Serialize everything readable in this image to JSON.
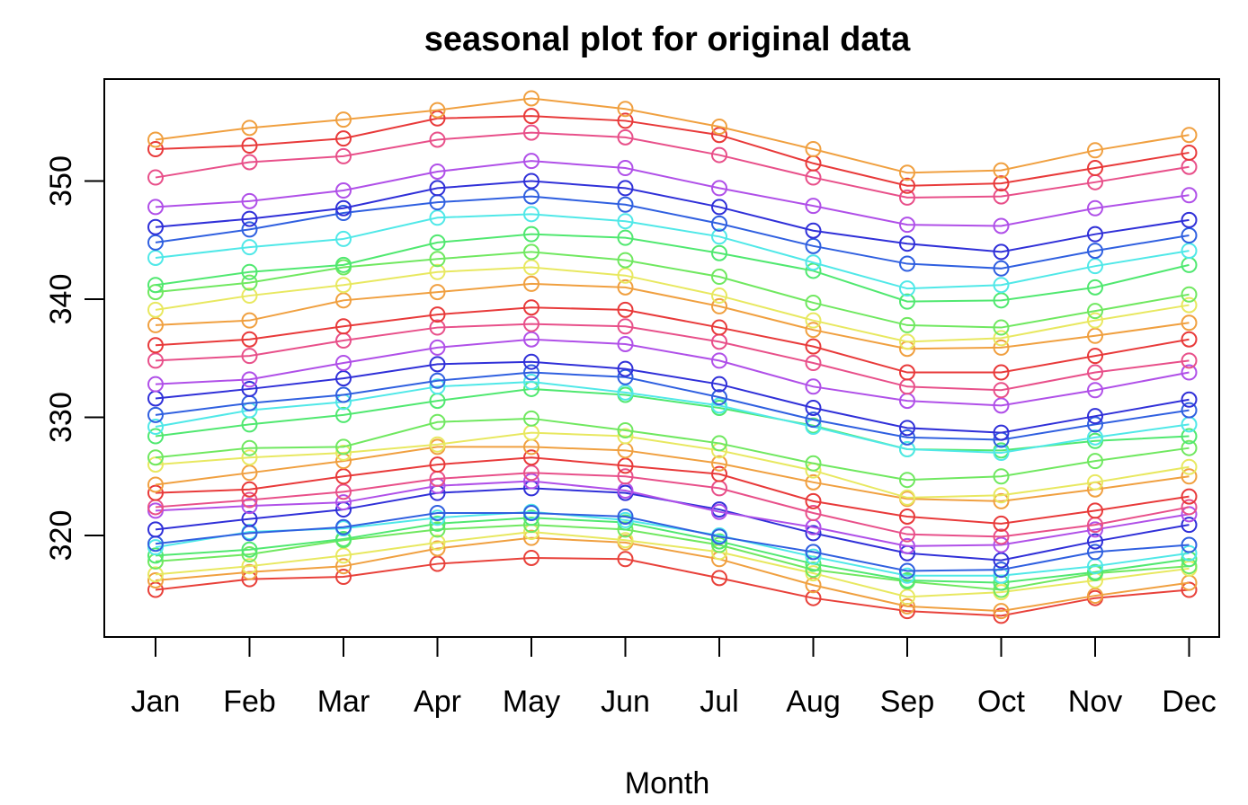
{
  "chart_data": {
    "type": "line",
    "title": "seasonal plot for original data",
    "xlabel": "Month",
    "ylabel": "",
    "categories": [
      "Jan",
      "Feb",
      "Mar",
      "Apr",
      "May",
      "Jun",
      "Jul",
      "Aug",
      "Sep",
      "Oct",
      "Nov",
      "Dec"
    ],
    "yticks": [
      320,
      330,
      340,
      350
    ],
    "ylim": [
      312,
      358
    ],
    "grid": false,
    "legend": "none",
    "marker": "open-circle",
    "series": [
      {
        "color": "#e8413a",
        "values": [
          315.4,
          316.3,
          316.5,
          317.6,
          318.1,
          318.0,
          316.4,
          314.7,
          313.6,
          313.2,
          314.7,
          315.4
        ]
      },
      {
        "color": "#f0a040",
        "values": [
          316.2,
          316.9,
          317.4,
          318.9,
          319.8,
          319.4,
          318.0,
          315.8,
          314.0,
          313.6,
          314.9,
          316.0
        ]
      },
      {
        "color": "#e8e860",
        "values": [
          316.7,
          317.4,
          318.3,
          319.4,
          320.3,
          319.6,
          318.6,
          316.8,
          314.8,
          315.2,
          316.2,
          317.2
        ]
      },
      {
        "color": "#70e860",
        "values": [
          317.8,
          318.4,
          319.6,
          320.5,
          320.9,
          320.5,
          319.2,
          317.1,
          316.1,
          315.4,
          316.8,
          317.4
        ]
      },
      {
        "color": "#50e870",
        "values": [
          318.3,
          318.8,
          319.7,
          321.0,
          321.5,
          321.1,
          319.5,
          317.6,
          316.2,
          316.0,
          316.9,
          318.0
        ]
      },
      {
        "color": "#50e8e8",
        "values": [
          319.0,
          320.3,
          320.6,
          321.5,
          322.0,
          321.3,
          320.0,
          318.2,
          316.6,
          316.6,
          317.4,
          318.5
        ]
      },
      {
        "color": "#3060e0",
        "values": [
          319.3,
          320.2,
          320.7,
          321.9,
          321.9,
          321.6,
          319.9,
          318.6,
          317.0,
          317.1,
          318.6,
          319.2
        ]
      },
      {
        "color": "#3030d8",
        "values": [
          320.5,
          321.4,
          322.2,
          323.6,
          324.0,
          323.6,
          322.2,
          320.2,
          318.5,
          317.9,
          319.5,
          320.9
        ]
      },
      {
        "color": "#b050e8",
        "values": [
          322.1,
          322.5,
          322.8,
          324.2,
          324.6,
          323.8,
          322.0,
          320.7,
          319.1,
          319.2,
          320.5,
          321.8
        ]
      },
      {
        "color": "#e8508a",
        "values": [
          322.4,
          323.0,
          323.7,
          324.8,
          325.3,
          325.0,
          324.0,
          321.9,
          320.1,
          319.9,
          320.9,
          322.4
        ]
      },
      {
        "color": "#e83a3a",
        "values": [
          323.6,
          323.9,
          325.0,
          326.0,
          326.6,
          325.9,
          325.2,
          322.9,
          321.6,
          321.0,
          322.1,
          323.3
        ]
      },
      {
        "color": "#f0a040",
        "values": [
          324.3,
          325.3,
          326.3,
          327.5,
          327.5,
          327.2,
          326.1,
          324.5,
          323.1,
          322.9,
          323.9,
          325.0
        ]
      },
      {
        "color": "#e8e860",
        "values": [
          326.0,
          326.6,
          327.0,
          327.7,
          328.7,
          328.4,
          327.2,
          325.5,
          323.2,
          323.4,
          324.5,
          325.8
        ]
      },
      {
        "color": "#70e860",
        "values": [
          326.6,
          327.4,
          327.5,
          329.6,
          329.9,
          328.9,
          327.8,
          326.1,
          324.7,
          325.0,
          326.3,
          327.4
        ]
      },
      {
        "color": "#50e870",
        "values": [
          328.4,
          329.4,
          330.2,
          331.4,
          332.4,
          331.9,
          330.8,
          329.3,
          327.3,
          327.2,
          328.0,
          328.4
        ]
      },
      {
        "color": "#50e8e8",
        "values": [
          329.2,
          330.6,
          331.3,
          332.6,
          333.0,
          332.1,
          331.0,
          329.2,
          327.3,
          327.0,
          328.3,
          329.4
        ]
      },
      {
        "color": "#3060e0",
        "values": [
          330.2,
          331.2,
          331.9,
          333.1,
          333.8,
          333.4,
          331.7,
          329.8,
          328.3,
          328.1,
          329.4,
          330.6
        ]
      },
      {
        "color": "#3030d8",
        "values": [
          331.6,
          332.4,
          333.3,
          334.5,
          334.7,
          334.1,
          332.8,
          330.8,
          329.1,
          328.7,
          330.1,
          331.5
        ]
      },
      {
        "color": "#b050e8",
        "values": [
          332.8,
          333.2,
          334.6,
          335.9,
          336.6,
          336.2,
          334.8,
          332.6,
          331.4,
          331.0,
          332.3,
          333.8
        ]
      },
      {
        "color": "#e8508a",
        "values": [
          334.8,
          335.2,
          336.5,
          337.6,
          337.9,
          337.7,
          336.4,
          334.6,
          332.6,
          332.3,
          333.8,
          334.8
        ]
      },
      {
        "color": "#e83a3a",
        "values": [
          336.1,
          336.6,
          337.7,
          338.7,
          339.3,
          339.1,
          337.6,
          336.0,
          333.8,
          333.8,
          335.2,
          336.6
        ]
      },
      {
        "color": "#f0a040",
        "values": [
          337.8,
          338.2,
          339.9,
          340.6,
          341.3,
          341.0,
          339.4,
          337.4,
          335.8,
          335.9,
          336.9,
          338.0
        ]
      },
      {
        "color": "#e8e860",
        "values": [
          339.1,
          340.3,
          341.2,
          342.3,
          342.7,
          342.0,
          340.3,
          338.2,
          336.4,
          336.7,
          338.2,
          339.5
        ]
      },
      {
        "color": "#70e860",
        "values": [
          340.6,
          341.4,
          342.7,
          343.4,
          344.0,
          343.3,
          341.9,
          339.7,
          337.8,
          337.6,
          339.0,
          340.4
        ]
      },
      {
        "color": "#50e870",
        "values": [
          341.2,
          342.3,
          342.9,
          344.8,
          345.5,
          345.2,
          343.9,
          342.4,
          339.8,
          339.9,
          341.0,
          342.9
        ]
      },
      {
        "color": "#50e8e8",
        "values": [
          343.5,
          344.4,
          345.1,
          346.9,
          347.2,
          346.6,
          345.3,
          343.1,
          340.9,
          341.2,
          342.8,
          344.1
        ]
      },
      {
        "color": "#3060e0",
        "values": [
          344.8,
          345.9,
          347.3,
          348.2,
          348.7,
          348.0,
          346.4,
          344.5,
          343.0,
          342.6,
          344.1,
          345.4
        ]
      },
      {
        "color": "#3030d8",
        "values": [
          346.1,
          346.8,
          347.7,
          349.4,
          350.0,
          349.4,
          347.8,
          345.8,
          344.7,
          344.0,
          345.5,
          346.7
        ]
      },
      {
        "color": "#b050e8",
        "values": [
          347.8,
          348.3,
          349.2,
          350.8,
          351.7,
          351.1,
          349.4,
          347.9,
          346.3,
          346.2,
          347.7,
          348.8
        ]
      },
      {
        "color": "#e8508a",
        "values": [
          350.3,
          351.6,
          352.1,
          353.5,
          354.1,
          353.7,
          352.2,
          350.3,
          348.6,
          348.7,
          349.9,
          351.2
        ]
      },
      {
        "color": "#e83a3a",
        "values": [
          352.7,
          353.0,
          353.6,
          355.3,
          355.5,
          355.1,
          353.9,
          351.5,
          349.6,
          349.8,
          351.1,
          352.4
        ]
      },
      {
        "color": "#f0a040",
        "values": [
          353.5,
          354.5,
          355.2,
          356.0,
          357.0,
          356.1,
          354.6,
          352.7,
          350.7,
          350.9,
          352.6,
          353.9
        ]
      }
    ]
  }
}
